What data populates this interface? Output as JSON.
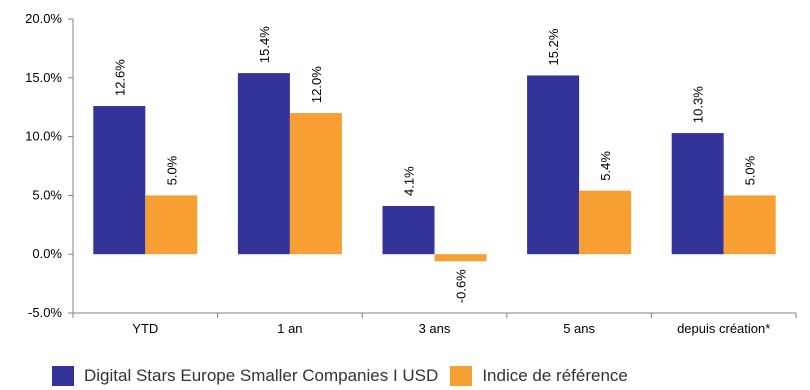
{
  "chart_data": {
    "type": "bar",
    "categories": [
      "YTD",
      "1 an",
      "3 ans",
      "5 ans",
      "depuis création*"
    ],
    "series": [
      {
        "name": "Digital Stars Europe Smaller Companies I USD",
        "color": "#333399",
        "values": [
          12.6,
          15.4,
          4.1,
          15.2,
          10.3
        ],
        "labels": [
          "12.6%",
          "15.4%",
          "4.1%",
          "15.2%",
          "10.3%"
        ]
      },
      {
        "name": "Indice de référence",
        "color": "#F79F32",
        "values": [
          5.0,
          12.0,
          -0.6,
          5.4,
          5.0
        ],
        "labels": [
          "5.0%",
          "12.0%",
          "-0.6%",
          "5.4%",
          "5.0%"
        ]
      }
    ],
    "yticks": [
      20.0,
      15.0,
      10.0,
      5.0,
      0.0,
      -5.0
    ],
    "ytick_labels": [
      "20.0%",
      "15.0%",
      "10.0%",
      "5.0%",
      "0.0%",
      "-5.0%"
    ],
    "ylim": [
      -5.0,
      20.0
    ],
    "grid": false,
    "legend_position": "bottom"
  }
}
